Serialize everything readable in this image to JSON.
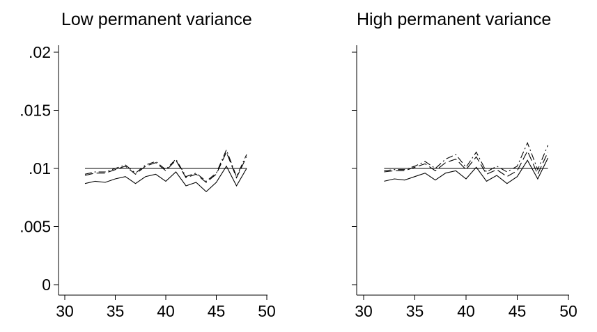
{
  "chart_data": [
    {
      "type": "line",
      "title": "Low permanent variance",
      "xlabel": "",
      "ylabel": "",
      "xlim": [
        30,
        50
      ],
      "ylim": [
        0,
        0.02
      ],
      "xticks": [
        30,
        35,
        40,
        45,
        50
      ],
      "xtick_labels": [
        "30",
        "35",
        "40",
        "45",
        "50"
      ],
      "yticks": [
        0,
        0.005,
        0.01,
        0.015,
        0.02
      ],
      "ytick_labels": [
        "0",
        ".005",
        ".01",
        ".015",
        ".02"
      ],
      "grid": false,
      "legend": "none",
      "x": [
        32,
        33,
        34,
        35,
        36,
        37,
        38,
        39,
        40,
        41,
        42,
        43,
        44,
        45,
        46,
        47,
        48
      ],
      "series": [
        {
          "style": "solid",
          "color": "#000000",
          "values": [
            0.01,
            0.01,
            0.01,
            0.01,
            0.01,
            0.01,
            0.01,
            0.01,
            0.01,
            0.01,
            0.01,
            0.01,
            0.01,
            0.01,
            0.01,
            0.01,
            0.01
          ]
        },
        {
          "style": "solid",
          "color": "#000000",
          "values": [
            0.0087,
            0.0089,
            0.0088,
            0.0091,
            0.0093,
            0.0087,
            0.0093,
            0.0095,
            0.0089,
            0.0097,
            0.0085,
            0.0088,
            0.008,
            0.0088,
            0.0102,
            0.0085,
            0.01
          ]
        },
        {
          "style": "dash",
          "color": "#000000",
          "values": [
            0.0094,
            0.0096,
            0.0096,
            0.0099,
            0.0102,
            0.0095,
            0.0102,
            0.0105,
            0.0098,
            0.0107,
            0.0092,
            0.0095,
            0.0088,
            0.0095,
            0.0114,
            0.0092,
            0.011
          ]
        },
        {
          "style": "dashdot",
          "color": "#000000",
          "values": [
            0.0095,
            0.0097,
            0.0097,
            0.01,
            0.0103,
            0.0096,
            0.0103,
            0.0106,
            0.0099,
            0.0108,
            0.0093,
            0.0096,
            0.0089,
            0.0096,
            0.0116,
            0.0093,
            0.0112
          ]
        }
      ]
    },
    {
      "type": "line",
      "title": "High permanent variance",
      "xlabel": "",
      "ylabel": "",
      "xlim": [
        30,
        50
      ],
      "ylim": [
        0,
        0.02
      ],
      "xticks": [
        30,
        35,
        40,
        45,
        50
      ],
      "xtick_labels": [
        "30",
        "35",
        "40",
        "45",
        "50"
      ],
      "yticks": [
        0,
        0.005,
        0.01,
        0.015,
        0.02
      ],
      "ytick_labels": [],
      "grid": false,
      "legend": "none",
      "x": [
        32,
        33,
        34,
        35,
        36,
        37,
        38,
        39,
        40,
        41,
        42,
        43,
        44,
        45,
        46,
        47,
        48
      ],
      "series": [
        {
          "style": "solid",
          "color": "#000000",
          "values": [
            0.01,
            0.01,
            0.01,
            0.01,
            0.01,
            0.01,
            0.01,
            0.01,
            0.01,
            0.01,
            0.01,
            0.01,
            0.01,
            0.01,
            0.01,
            0.01,
            0.01
          ]
        },
        {
          "style": "solid",
          "color": "#000000",
          "values": [
            0.0089,
            0.0091,
            0.009,
            0.0093,
            0.0096,
            0.009,
            0.0096,
            0.0098,
            0.0091,
            0.0101,
            0.0089,
            0.0094,
            0.0087,
            0.0093,
            0.0107,
            0.0091,
            0.0109
          ]
        },
        {
          "style": "dash",
          "color": "#000000",
          "values": [
            0.0097,
            0.0098,
            0.0098,
            0.0101,
            0.0104,
            0.0098,
            0.0105,
            0.0108,
            0.0099,
            0.011,
            0.0095,
            0.0099,
            0.0093,
            0.0098,
            0.0115,
            0.0095,
            0.0114
          ]
        },
        {
          "style": "dashdot",
          "color": "#000000",
          "values": [
            0.0098,
            0.0099,
            0.0099,
            0.0102,
            0.0106,
            0.01,
            0.0108,
            0.0112,
            0.0101,
            0.0114,
            0.0097,
            0.0102,
            0.0097,
            0.0102,
            0.0122,
            0.0099,
            0.012
          ]
        }
      ]
    }
  ]
}
